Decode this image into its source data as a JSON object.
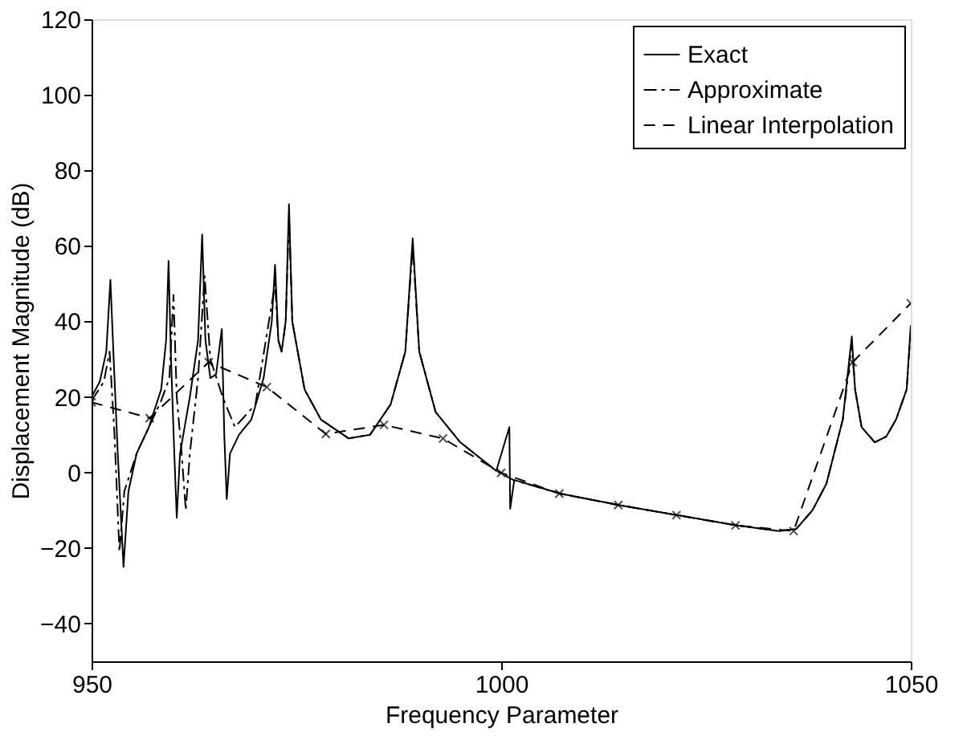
{
  "chart_data": {
    "type": "line",
    "xlabel": "Frequency Parameter",
    "ylabel": "Displacement Magnitude (dB)",
    "xlim": [
      950,
      1050
    ],
    "xticks": [
      950,
      1000,
      1050
    ],
    "ylim": [
      -50,
      120
    ],
    "yticks": [
      -40,
      -20,
      0,
      20,
      40,
      60,
      80,
      100,
      120
    ],
    "grid": false,
    "legend": "top right",
    "series": [
      {
        "name": "Exact",
        "color": "#000000",
        "line_style": "solid",
        "marker": "none",
        "x": [
          950,
          951,
          951.8,
          952.3,
          952.7,
          953.2,
          953.9,
          954.5,
          955.5,
          957,
          958.5,
          959.1,
          959.4,
          959.7,
          960.1,
          960.4,
          960.8,
          962,
          963,
          963.5,
          963.9,
          964.5,
          965.2,
          965.9,
          966.2,
          966.5,
          966.9,
          968,
          969.5,
          971,
          972,
          972.4,
          972.8,
          973.2,
          973.7,
          974.1,
          974.5,
          976,
          978,
          981.4,
          984,
          986.5,
          988.3,
          989.2,
          990,
          992,
          995,
          999.4,
          1001,
          1001.1,
          1001.6,
          1004,
          1007.2,
          1014.3,
          1021.5,
          1028.7,
          1033.9,
          1036,
          1038,
          1039.7,
          1041.7,
          1042.8,
          1043.2,
          1044,
          1045.6,
          1047,
          1048.2,
          1049.5,
          1050
        ],
        "values": [
          20,
          24,
          32,
          51,
          30,
          5,
          -25,
          -5,
          5,
          12,
          22,
          35,
          56,
          30,
          5,
          -12,
          5,
          20,
          35,
          63,
          35,
          25,
          26,
          38,
          10,
          -7,
          5,
          10,
          14,
          25,
          40,
          55,
          35,
          32,
          40,
          71,
          40,
          22,
          14,
          9,
          10,
          18,
          32,
          62,
          32,
          16,
          8,
          0.4,
          12,
          -9.6,
          -2,
          -3.5,
          -5.6,
          -8.6,
          -11.3,
          -14,
          -15.5,
          -15,
          -10,
          -3,
          14,
          36,
          22,
          12,
          8,
          9.5,
          14,
          22,
          39
        ]
      },
      {
        "name": "Approximate",
        "color": "#000000",
        "line_style": "dashdot",
        "marker": "none",
        "x": [
          950,
          951.5,
          952.2,
          952.8,
          953.4,
          954,
          955.5,
          957,
          958.5,
          959.5,
          960,
          960.4,
          961,
          961.5,
          962,
          963,
          963.8,
          964.5,
          966,
          967.5,
          970,
          972.4,
          972.8,
          973.2,
          973.7,
          974.1,
          974.5,
          976,
          978,
          981.4,
          984,
          986.5,
          988.3,
          989.2,
          990,
          992,
          995,
          999.4,
          1001.5,
          1007.2,
          1014.3,
          1021.5,
          1028.7,
          1033.9,
          1036,
          1038,
          1039.7,
          1041.7,
          1042.8,
          1043.2,
          1044,
          1045.6,
          1047,
          1048.2,
          1049.5,
          1050
        ],
        "values": [
          19,
          24,
          32,
          10,
          -21,
          -5,
          5,
          12,
          19,
          25,
          47,
          20,
          5,
          -10,
          5,
          25,
          52,
          30,
          20,
          12,
          18,
          50,
          35,
          32,
          40,
          68,
          40,
          22,
          14,
          9,
          10,
          18,
          32,
          60,
          32,
          16,
          8,
          0.4,
          -2,
          -5.6,
          -8.6,
          -11.3,
          -14,
          -15.5,
          -15,
          -10,
          -3,
          14,
          34,
          22,
          12,
          8,
          9.5,
          14,
          22,
          38
        ]
      },
      {
        "name": "Linear Interpolation",
        "color": "#000000",
        "line_style": "dashed",
        "marker": "cross",
        "x": [
          950,
          957.1,
          964.3,
          971.4,
          978.6,
          985.7,
          992.9,
          1000,
          1007.1,
          1014.3,
          1021.4,
          1028.6,
          1035.7,
          1042.9,
          1050
        ],
        "values": [
          18.6,
          14.4,
          29.2,
          22.6,
          10.2,
          12.6,
          9,
          -0.1,
          -5.6,
          -8.6,
          -11.3,
          -14,
          -15.5,
          29.2,
          44.8
        ]
      }
    ]
  }
}
